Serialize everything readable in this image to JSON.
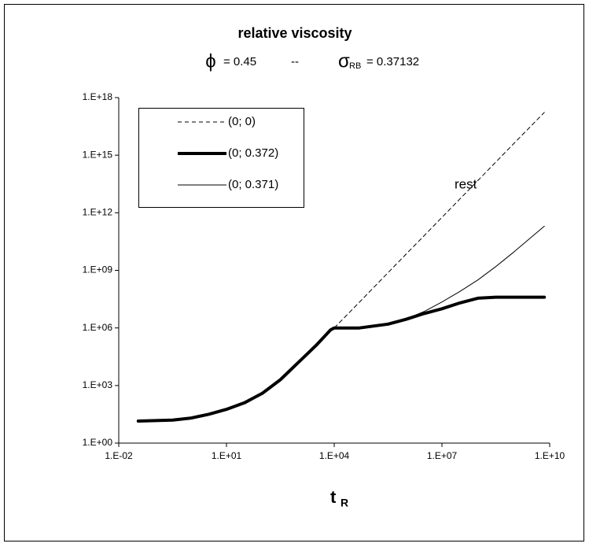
{
  "chart_data": {
    "type": "line",
    "title": "relative viscosity",
    "subtitle": {
      "phi": "ϕ",
      "phi_value": "= 0.45",
      "separator": "--",
      "sigma": "σ",
      "sigma_sub": "RB",
      "sigma_value": "= 0.37132"
    },
    "xlabel": "t",
    "xlabel_sub": "R",
    "annotation": "rest",
    "xscale": "log",
    "yscale": "log",
    "xlim": [
      0.01,
      10000000000
    ],
    "ylim": [
      1,
      1000000000000000000
    ],
    "xticks": [
      {
        "value": 0.01,
        "label": "1.E-02"
      },
      {
        "value": 10,
        "label": "1.E+01"
      },
      {
        "value": 10000,
        "label": "1.E+04"
      },
      {
        "value": 10000000,
        "label": "1.E+07"
      },
      {
        "value": 10000000000,
        "label": "1.E+10"
      }
    ],
    "yticks": [
      {
        "value": 1,
        "label": "1.E+00"
      },
      {
        "value": 1000,
        "label": "1.E+03"
      },
      {
        "value": 1000000,
        "label": "1.E+06"
      },
      {
        "value": 1000000000,
        "label": "1.E+09"
      },
      {
        "value": 1000000000000,
        "label": "1.E+12"
      },
      {
        "value": 1000000000000000,
        "label": "1.E+15"
      },
      {
        "value": 1000000000000000000,
        "label": "1.E+18"
      }
    ],
    "grid": false,
    "legend": "upper left",
    "x": [
      0.035,
      0.316,
      1,
      3.16,
      10,
      31.6,
      100,
      316,
      1000,
      3160,
      7940,
      10000,
      50100,
      316000,
      1000000,
      3160000,
      10000000,
      31600000,
      100000000,
      316000000,
      1000000000,
      7080000000
    ],
    "series": [
      {
        "name": "(0; 0)",
        "color": "#000000",
        "style": "dashed",
        "width": 1,
        "values": [
          14.1,
          15.8,
          20,
          31.6,
          57.5,
          126,
          398,
          2000,
          15800,
          126000,
          794000,
          1000000,
          21900000,
          759000000,
          6920000000,
          63100000000,
          575000000000,
          5250000000000,
          47900000000000,
          437000000000000,
          3980000000000000,
          170000000000000000
        ]
      },
      {
        "name": "(0; 0.372)",
        "color": "#000000",
        "style": "solid",
        "width": 4,
        "values": [
          14.1,
          15.8,
          20,
          31.6,
          57.5,
          126,
          398,
          2000,
          15800,
          126000,
          794000,
          1000000,
          1000000,
          1580000,
          2820000,
          5620000,
          10000000,
          20000000,
          35500000,
          39800000,
          39800000,
          39800000
        ]
      },
      {
        "name": "(0; 0.371)",
        "color": "#000000",
        "style": "solid",
        "width": 1,
        "values": [
          14.1,
          15.8,
          20,
          31.6,
          57.5,
          126,
          398,
          2000,
          15800,
          126000,
          794000,
          1000000,
          1000000,
          1580000,
          2950000,
          7080000,
          22400000,
          79400000,
          316000000,
          1580000000,
          8910000000,
          200000000000
        ]
      }
    ]
  }
}
